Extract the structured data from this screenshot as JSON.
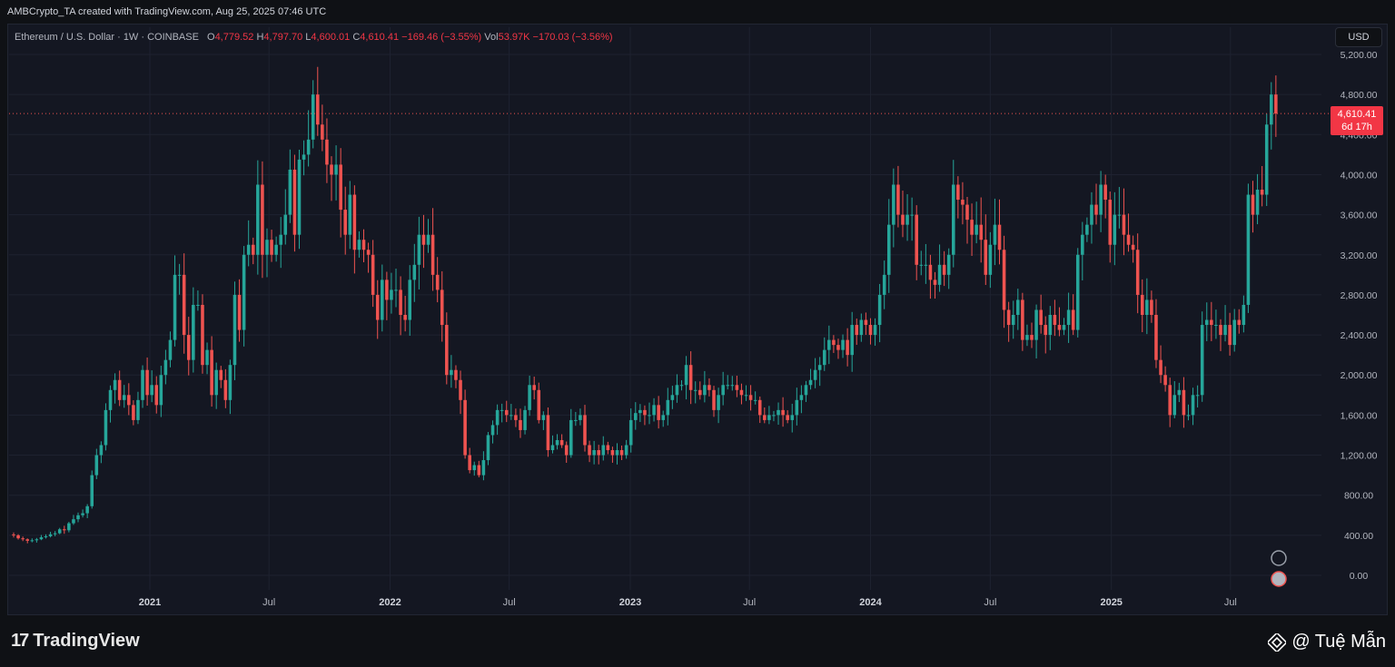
{
  "header": {
    "title": "AMBCrypto_TA created with TradingView.com, Aug 25, 2025 07:46 UTC"
  },
  "legend": {
    "symbol": "Ethereum / U.S. Dollar · 1W · COINBASE",
    "o_label": "O",
    "o_value": "4,779.52",
    "h_label": "H",
    "h_value": "4,797.70",
    "l_label": "L",
    "l_value": "4,600.01",
    "c_label": "C",
    "c_value": "4,610.41",
    "change": "−169.46 (−3.55%)",
    "vol_label": "Vol",
    "vol_value": "53.97K",
    "vol_change": "−170.03 (−3.56%)"
  },
  "currency_button": "USD",
  "price_tag": {
    "price": "4,610.41",
    "countdown": "6d 17h"
  },
  "footer": {
    "brand": "TradingView",
    "watermark": "@ Tuệ Mẫn"
  },
  "colors": {
    "up": "#26a69a",
    "down": "#ef5350",
    "background": "#141722",
    "grid": "#1f2330"
  },
  "chart_data": {
    "type": "candlestick",
    "y_ticks": [
      0,
      400,
      800,
      1200,
      1600,
      2000,
      2400,
      2800,
      3200,
      3600,
      4000,
      4400,
      4800,
      5200
    ],
    "y_tick_labels": [
      "0.00",
      "400.00",
      "800.00",
      "1,200.00",
      "1,600.00",
      "2,000.00",
      "2,400.00",
      "2,800.00",
      "3,200.00",
      "3,600.00",
      "4,000.00",
      "4,400.00",
      "4,800.00",
      "5,200.00"
    ],
    "ylim": [
      0,
      5200
    ],
    "x_labels": [
      {
        "label": "2021",
        "date": "2021-01-01",
        "bold": true
      },
      {
        "label": "Jul",
        "date": "2021-07-01",
        "bold": false
      },
      {
        "label": "2022",
        "date": "2022-01-01",
        "bold": true
      },
      {
        "label": "Jul",
        "date": "2022-07-01",
        "bold": false
      },
      {
        "label": "2023",
        "date": "2023-01-01",
        "bold": true
      },
      {
        "label": "Jul",
        "date": "2023-07-01",
        "bold": false
      },
      {
        "label": "2024",
        "date": "2024-01-01",
        "bold": true
      },
      {
        "label": "Jul",
        "date": "2024-07-01",
        "bold": false
      },
      {
        "label": "2025",
        "date": "2025-01-01",
        "bold": true
      },
      {
        "label": "Jul",
        "date": "2025-07-01",
        "bold": false
      }
    ],
    "xlim": [
      "2020-06-08",
      "2025-09-22"
    ],
    "first_candle_date": "2020-06-08",
    "closes": [
      400,
      370,
      360,
      345,
      350,
      360,
      380,
      390,
      410,
      420,
      460,
      450,
      520,
      560,
      600,
      620,
      690,
      1000,
      1200,
      1300,
      1650,
      1850,
      1950,
      1750,
      1800,
      1700,
      1550,
      1750,
      2050,
      1800,
      1900,
      1700,
      2000,
      2150,
      2350,
      3000,
      3000,
      2400,
      2150,
      2700,
      2700,
      2100,
      2250,
      1800,
      2050,
      1950,
      1750,
      2100,
      2800,
      2450,
      3200,
      3300,
      3200,
      3900,
      3200,
      3350,
      3200,
      3300,
      3400,
      3600,
      4050,
      3400,
      4150,
      4200,
      4350,
      4800,
      4500,
      4350,
      4100,
      4000,
      4100,
      3650,
      3400,
      3800,
      3250,
      3350,
      3250,
      3200,
      2800,
      2550,
      2950,
      2750,
      2850,
      2850,
      2600,
      2550,
      2950,
      3100,
      3400,
      3300,
      3400,
      3000,
      2850,
      2500,
      2000,
      2050,
      1950,
      1750,
      1200,
      1050,
      1100,
      1000,
      1150,
      1400,
      1500,
      1650,
      1650,
      1600,
      1600,
      1550,
      1450,
      1650,
      1900,
      1850,
      1550,
      1600,
      1250,
      1300,
      1350,
      1300,
      1200,
      1550,
      1550,
      1600,
      1300,
      1200,
      1250,
      1200,
      1300,
      1250,
      1200,
      1250,
      1200,
      1300,
      1550,
      1620,
      1650,
      1600,
      1600,
      1700,
      1550,
      1600,
      1750,
      1800,
      1900,
      1900,
      2100,
      1850,
      1850,
      1800,
      1900,
      1850,
      1650,
      1800,
      1900,
      1900,
      1900,
      1850,
      1800,
      1800,
      1750,
      1750,
      1600,
      1550,
      1600,
      1600,
      1650,
      1600,
      1550,
      1600,
      1750,
      1800,
      1900,
      1950,
      2050,
      2100,
      2250,
      2350,
      2300,
      2250,
      2350,
      2200,
      2500,
      2400,
      2550,
      2500,
      2400,
      2500,
      2800,
      3000,
      3500,
      3900,
      3600,
      3500,
      3600,
      3600,
      3100,
      3100,
      3100,
      2950,
      2900,
      3100,
      3000,
      3200,
      3900,
      3750,
      3700,
      3550,
      3400,
      3500,
      3350,
      3000,
      3300,
      3500,
      3250,
      2650,
      2500,
      2600,
      2750,
      2350,
      2400,
      2350,
      2650,
      2500,
      2400,
      2600,
      2500,
      2450,
      2500,
      2650,
      2450,
      3200,
      3400,
      3500,
      3700,
      3600,
      3900,
      3750,
      3300,
      3600,
      3600,
      3400,
      3300,
      3250,
      2800,
      2600,
      2750,
      2600,
      2150,
      2000,
      1900,
      1600,
      1800,
      1850,
      1600,
      1600,
      1800,
      1800,
      2500,
      2550,
      2500,
      2500,
      2400,
      2500,
      2300,
      2550,
      2500,
      2700,
      3800,
      3600,
      3850,
      3800,
      4500,
      4800,
      4610
    ]
  }
}
